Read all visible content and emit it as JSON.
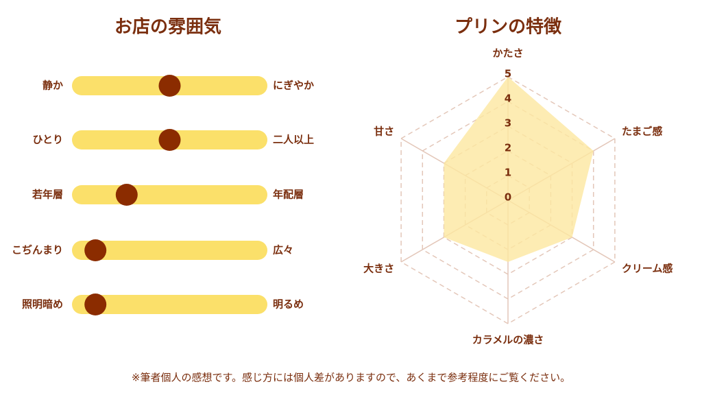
{
  "chart_data": [
    {
      "type": "slider",
      "title": "お店の雰囲気",
      "categories": [
        "静か",
        "ひとり",
        "若年層",
        "こぢんまり",
        "照明暗め"
      ],
      "right_labels": [
        "にぎやか",
        "二人以上",
        "年配層",
        "広々",
        "明るめ"
      ],
      "values": [
        5,
        5,
        2.8,
        1.2,
        1.2
      ],
      "xlim": [
        0,
        10
      ],
      "color": "#fbe06a",
      "knob_color": "#8b2c00"
    },
    {
      "type": "radar",
      "title": "プリンの特徴",
      "categories": [
        "かたさ",
        "たまご感",
        "クリーム感",
        "カラメルの濃さ",
        "大きさ",
        "甘さ"
      ],
      "values": [
        5,
        4,
        3,
        2.5,
        3,
        3
      ],
      "ylim": [
        0,
        5
      ],
      "yticks": [
        0,
        1,
        2,
        3,
        4,
        5
      ],
      "color": "#fde7a0",
      "grid": true
    }
  ],
  "footnote": "※筆者個人の感想です。感じ方には個人差がありますので、あくまで参考程度にご覧ください。"
}
